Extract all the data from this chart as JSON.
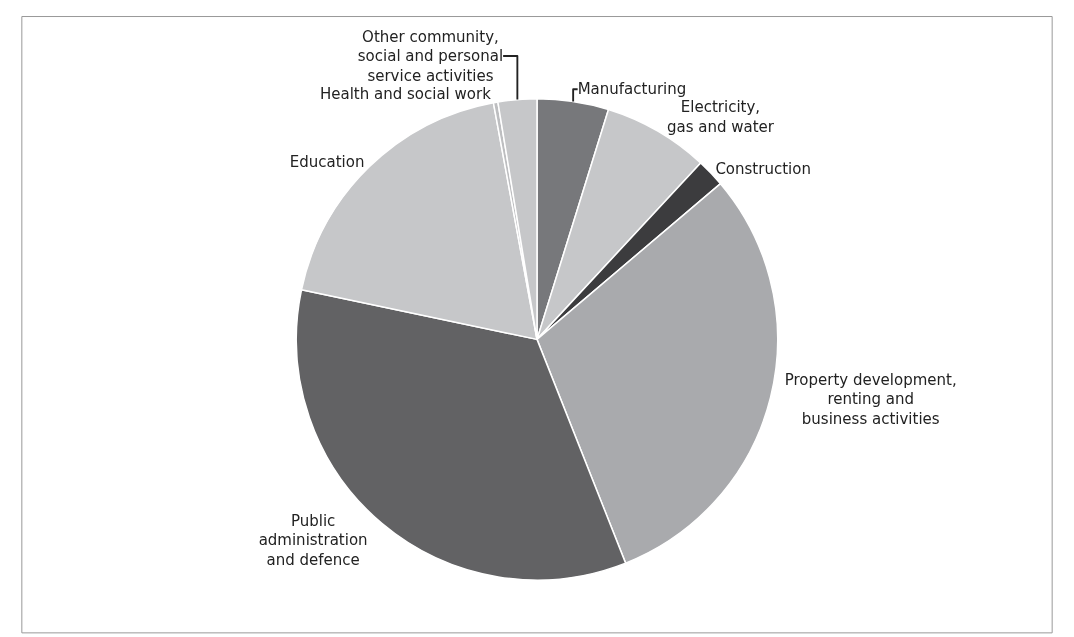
{
  "chart_data": {
    "type": "pie",
    "categories": [
      "Manufacturing",
      "Electricity,\ngas and water",
      "Construction",
      "Property development,\nrenting and\nbusiness activities",
      "Public\nadministration\nand defence",
      "Education",
      "Health and social work",
      "Other community,\nsocial and personal\nservice activities"
    ],
    "values": [
      4.8,
      7.1,
      1.9,
      30.2,
      34.3,
      18.8,
      0.3,
      2.6
    ],
    "colors": [
      "#77787b",
      "#c6c7c9",
      "#3c3c3e",
      "#a9aaad",
      "#626264",
      "#c6c7c9",
      "#bdbec0",
      "#c6c7c9"
    ],
    "legend": false
  }
}
